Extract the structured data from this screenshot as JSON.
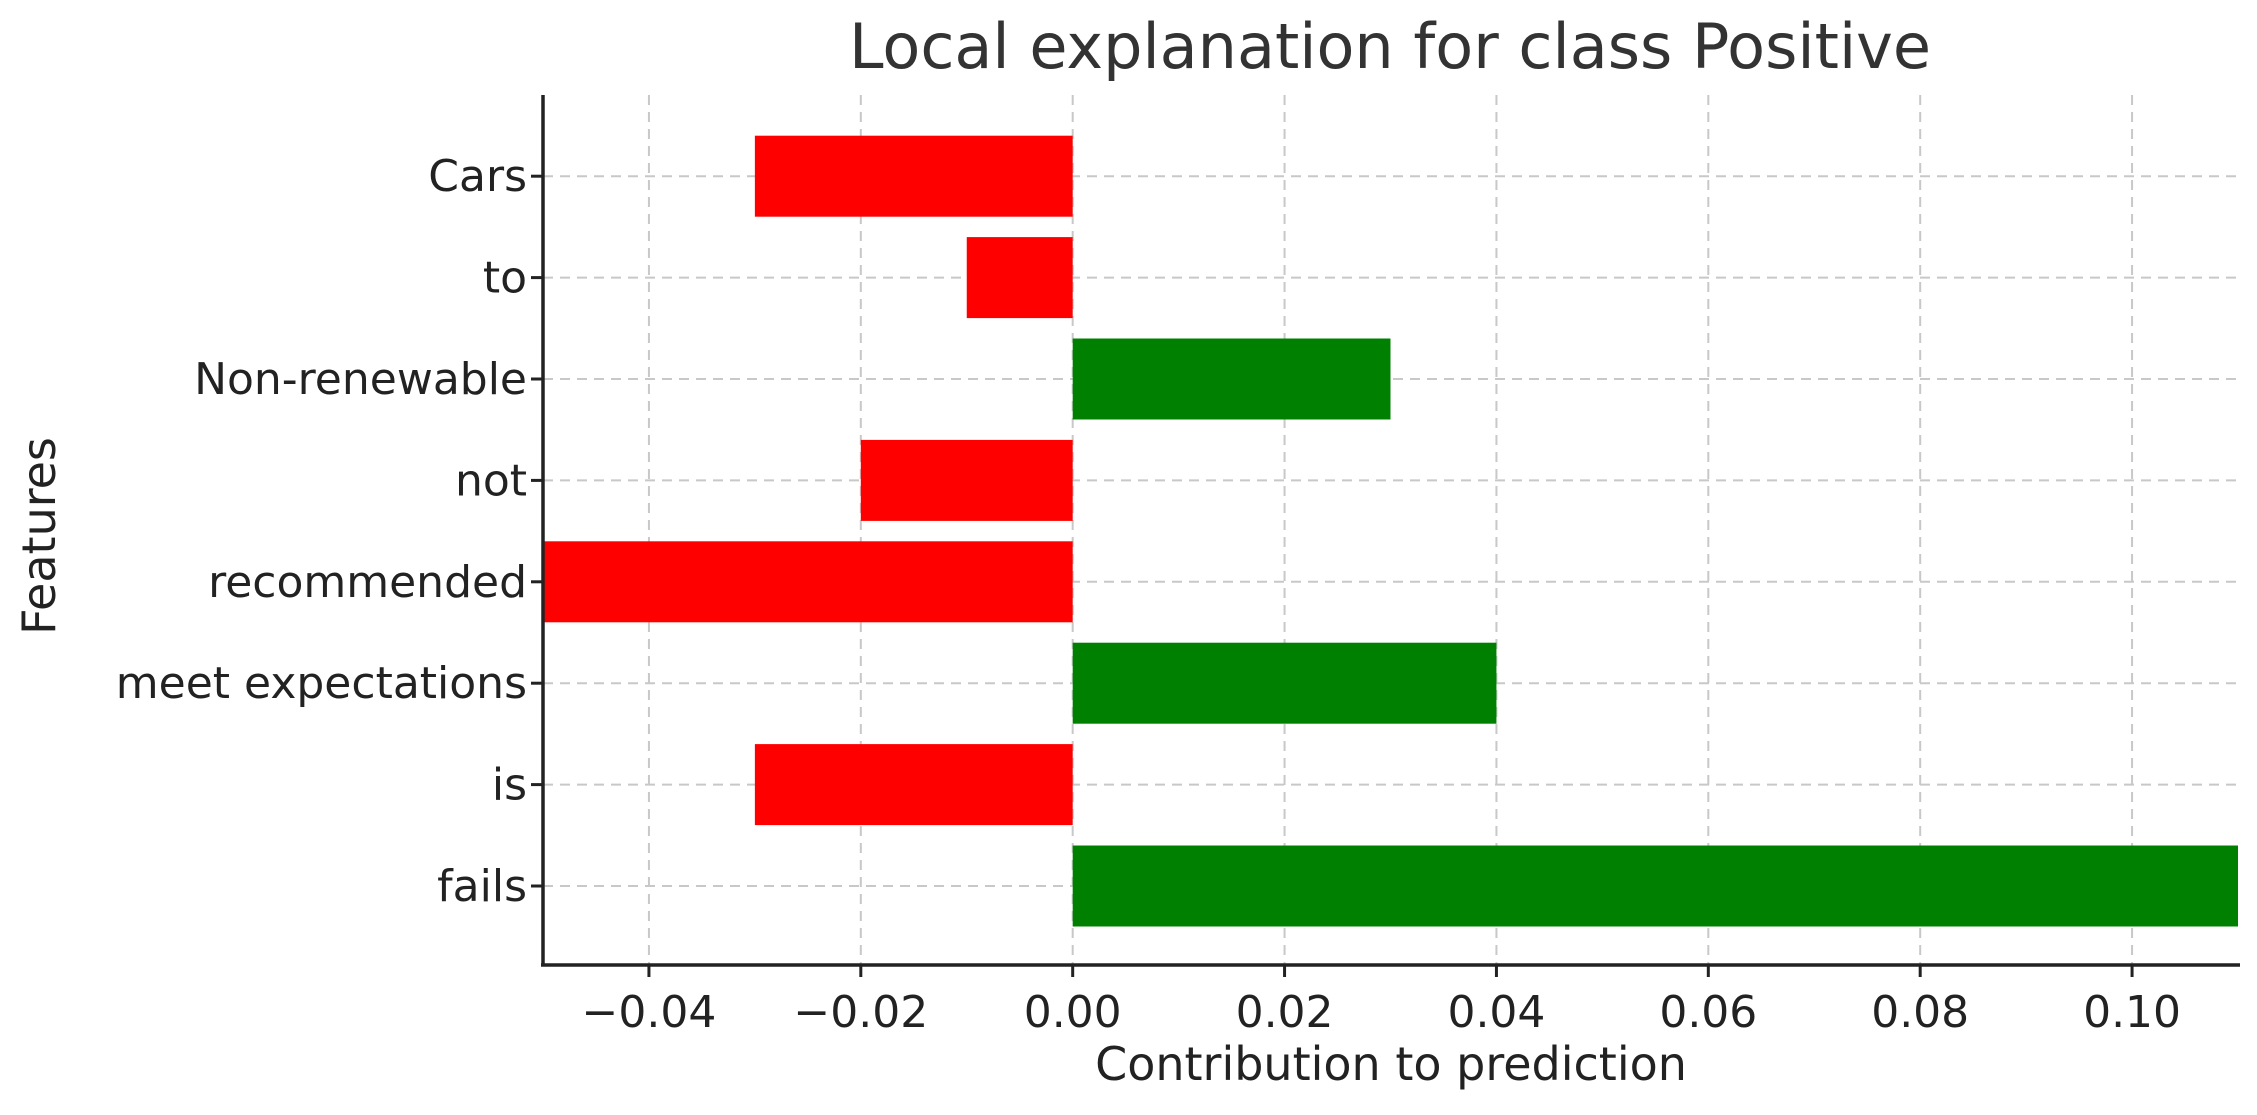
{
  "chart_data": {
    "type": "bar",
    "orientation": "horizontal",
    "title": "Local explanation for class Positive",
    "xlabel": "Contribution to prediction",
    "ylabel": "Features",
    "categories": [
      "fails",
      "is",
      "meet expectations",
      "recommended",
      "not",
      "Non-renewable",
      "to",
      "Cars"
    ],
    "values": [
      0.11,
      -0.03,
      0.04,
      -0.05,
      -0.02,
      0.03,
      -0.01,
      -0.03
    ],
    "xlim": [
      -0.05,
      0.11
    ],
    "xticks": [
      -0.04,
      -0.02,
      0.0,
      0.02,
      0.04,
      0.06,
      0.08,
      0.1
    ],
    "xtick_labels": [
      "−0.04",
      "−0.02",
      "0.00",
      "0.02",
      "0.04",
      "0.06",
      "0.08",
      "0.10"
    ],
    "grid": true,
    "colors": {
      "positive": "#008000",
      "negative": "#ff0000"
    }
  }
}
